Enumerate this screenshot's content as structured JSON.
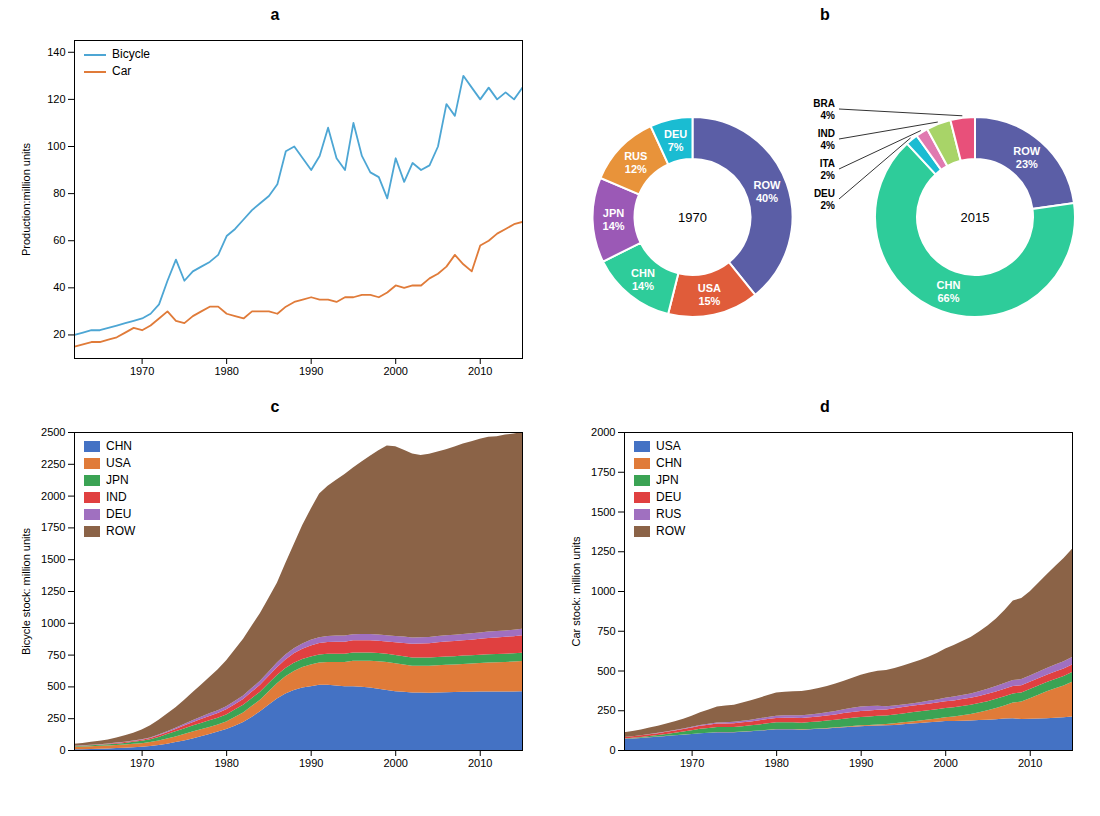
{
  "chart_data": [
    {
      "type": "line",
      "title": "a",
      "ylabel": "Production:million units",
      "x": [
        1962,
        1963,
        1964,
        1965,
        1966,
        1967,
        1968,
        1969,
        1970,
        1971,
        1972,
        1973,
        1974,
        1975,
        1976,
        1977,
        1978,
        1979,
        1980,
        1981,
        1982,
        1983,
        1984,
        1985,
        1986,
        1987,
        1988,
        1989,
        1990,
        1991,
        1992,
        1993,
        1994,
        1995,
        1996,
        1997,
        1998,
        1999,
        2000,
        2001,
        2002,
        2003,
        2004,
        2005,
        2006,
        2007,
        2008,
        2009,
        2010,
        2011,
        2012,
        2013,
        2014,
        2015
      ],
      "series": [
        {
          "name": "Bicycle",
          "color": "#4da6d4",
          "values": [
            20,
            21,
            22,
            22,
            23,
            24,
            25,
            26,
            27,
            29,
            33,
            43,
            52,
            43,
            47,
            49,
            51,
            54,
            62,
            65,
            69,
            73,
            76,
            79,
            84,
            98,
            100,
            95,
            90,
            96,
            108,
            95,
            90,
            110,
            96,
            89,
            87,
            78,
            95,
            85,
            93,
            90,
            92,
            100,
            118,
            113,
            130,
            125,
            120,
            125,
            120,
            123,
            120,
            125
          ]
        },
        {
          "name": "Car",
          "color": "#e07b39",
          "values": [
            15,
            16,
            17,
            17,
            18,
            19,
            21,
            23,
            22,
            24,
            27,
            30,
            26,
            25,
            28,
            30,
            32,
            32,
            29,
            28,
            27,
            30,
            30,
            30,
            29,
            32,
            34,
            35,
            36,
            35,
            35,
            34,
            36,
            36,
            37,
            37,
            36,
            38,
            41,
            40,
            41,
            41,
            44,
            46,
            49,
            54,
            50,
            47,
            58,
            60,
            63,
            65,
            67,
            68
          ]
        }
      ],
      "xlim": [
        1962,
        2015
      ],
      "xticks": [
        1970,
        1980,
        1990,
        2000,
        2010
      ],
      "ylim": [
        10,
        145
      ],
      "yticks": [
        20,
        40,
        60,
        80,
        100,
        120,
        140
      ],
      "legend": "upper left"
    },
    {
      "type": "pie",
      "title": "b",
      "annotations": [
        "1970"
      ],
      "categories": [
        "ROW",
        "USA",
        "CHN",
        "JPN",
        "RUS",
        "DEU"
      ],
      "values": [
        40,
        15,
        14,
        14,
        12,
        7
      ],
      "value_labels": [
        "40%",
        "15%",
        "14%",
        "14%",
        "12%",
        "7%"
      ],
      "colors": [
        "#5b5ea6",
        "#e05c3a",
        "#2ecc9a",
        "#9b59b6",
        "#e8933a",
        "#1abcd2"
      ]
    },
    {
      "type": "pie",
      "annotations": [
        "2015"
      ],
      "categories": [
        "ROW",
        "CHN",
        "DEU",
        "ITA",
        "IND",
        "BRA"
      ],
      "values": [
        23,
        66,
        2,
        2,
        4,
        4
      ],
      "value_labels": [
        "23%",
        "66%",
        "2%",
        "2%",
        "4%",
        "4%"
      ],
      "colors": [
        "#5b5ea6",
        "#2ecc9a",
        "#1abcd2",
        "#e07ab0",
        "#a8d468",
        "#e8507a"
      ]
    },
    {
      "type": "area",
      "stacked": true,
      "title": "c",
      "ylabel": "Bicycle stock: million units",
      "x": [
        1962,
        1963,
        1964,
        1965,
        1966,
        1967,
        1968,
        1969,
        1970,
        1971,
        1972,
        1973,
        1974,
        1975,
        1976,
        1977,
        1978,
        1979,
        1980,
        1981,
        1982,
        1983,
        1984,
        1985,
        1986,
        1987,
        1988,
        1989,
        1990,
        1991,
        1992,
        1993,
        1994,
        1995,
        1996,
        1997,
        1998,
        1999,
        2000,
        2001,
        2002,
        2003,
        2004,
        2005,
        2006,
        2007,
        2008,
        2009,
        2010,
        2011,
        2012,
        2013,
        2014,
        2015
      ],
      "series": [
        {
          "name": "CHN",
          "color": "#4472c4",
          "values": [
            5,
            6,
            8,
            10,
            12,
            15,
            18,
            22,
            26,
            32,
            40,
            50,
            62,
            75,
            90,
            108,
            126,
            145,
            165,
            190,
            220,
            260,
            305,
            355,
            405,
            445,
            472,
            492,
            502,
            512,
            512,
            507,
            502,
            502,
            497,
            492,
            482,
            472,
            462,
            457,
            452,
            452,
            450,
            452,
            454,
            455,
            457,
            458,
            459,
            460,
            460,
            460,
            460,
            462
          ]
        },
        {
          "name": "USA",
          "color": "#e07b39",
          "values": [
            20,
            21,
            22,
            23,
            24,
            25,
            26,
            27,
            28,
            30,
            35,
            40,
            45,
            50,
            55,
            55,
            55,
            55,
            60,
            70,
            75,
            85,
            90,
            105,
            120,
            135,
            150,
            160,
            170,
            175,
            180,
            185,
            190,
            200,
            205,
            210,
            215,
            220,
            220,
            215,
            210,
            210,
            212,
            215,
            217,
            218,
            220,
            222,
            225,
            228,
            230,
            232,
            235,
            238
          ]
        },
        {
          "name": "JPN",
          "color": "#3ba354",
          "values": [
            5,
            6,
            7,
            8,
            9,
            10,
            12,
            15,
            18,
            22,
            28,
            35,
            40,
            45,
            48,
            50,
            52,
            53,
            55,
            58,
            60,
            62,
            63,
            64,
            64,
            64,
            64,
            64,
            64,
            64,
            64,
            64,
            64,
            64,
            64,
            64,
            65,
            65,
            65,
            65,
            65,
            65,
            65,
            65,
            65,
            65,
            65,
            65,
            65,
            65,
            65,
            65,
            65,
            65
          ]
        },
        {
          "name": "IND",
          "color": "#e04040",
          "values": [
            2,
            2,
            3,
            3,
            4,
            5,
            6,
            7,
            8,
            10,
            12,
            15,
            18,
            22,
            26,
            30,
            35,
            38,
            40,
            42,
            46,
            50,
            54,
            58,
            62,
            68,
            74,
            80,
            86,
            90,
            94,
            96,
            96,
            96,
            96,
            96,
            96,
            96,
            100,
            105,
            108,
            110,
            112,
            115,
            117,
            118,
            120,
            122,
            125,
            128,
            130,
            133,
            135,
            138
          ]
        },
        {
          "name": "DEU",
          "color": "#a070c0",
          "values": [
            2,
            2,
            2,
            2,
            2,
            3,
            3,
            3,
            4,
            5,
            6,
            8,
            10,
            12,
            15,
            18,
            20,
            22,
            24,
            26,
            28,
            30,
            32,
            34,
            36,
            38,
            40,
            42,
            44,
            46,
            47,
            48,
            48,
            48,
            49,
            50,
            50,
            50,
            50,
            50,
            50,
            50,
            50,
            50,
            50,
            50,
            50,
            50,
            50,
            50,
            50,
            50,
            50,
            50
          ]
        },
        {
          "name": "ROW",
          "color": "#8b6347",
          "values": [
            15,
            18,
            22,
            26,
            32,
            40,
            50,
            62,
            78,
            96,
            116,
            138,
            162,
            190,
            220,
            252,
            286,
            322,
            362,
            404,
            446,
            490,
            534,
            578,
            628,
            720,
            820,
            930,
            1030,
            1130,
            1180,
            1225,
            1270,
            1310,
            1358,
            1402,
            1448,
            1490,
            1490,
            1468,
            1446,
            1432,
            1440,
            1450,
            1462,
            1480,
            1498,
            1510,
            1522,
            1532,
            1532,
            1540,
            1543,
            1547
          ]
        }
      ],
      "xlim": [
        1962,
        2015
      ],
      "xticks": [
        1970,
        1980,
        1990,
        2000,
        2010
      ],
      "ylim": [
        0,
        2500
      ],
      "yticks": [
        0,
        250,
        500,
        750,
        1000,
        1250,
        1500,
        1750,
        2000,
        2250,
        2500
      ],
      "legend": "upper left"
    },
    {
      "type": "area",
      "stacked": true,
      "title": "d",
      "ylabel": "Car stock: million units",
      "x": [
        1962,
        1963,
        1964,
        1965,
        1966,
        1967,
        1968,
        1969,
        1970,
        1971,
        1972,
        1973,
        1974,
        1975,
        1976,
        1977,
        1978,
        1979,
        1980,
        1981,
        1982,
        1983,
        1984,
        1985,
        1986,
        1987,
        1988,
        1989,
        1990,
        1991,
        1992,
        1993,
        1994,
        1995,
        1996,
        1997,
        1998,
        1999,
        2000,
        2001,
        2002,
        2003,
        2004,
        2005,
        2006,
        2007,
        2008,
        2009,
        2010,
        2011,
        2012,
        2013,
        2014,
        2015
      ],
      "series": [
        {
          "name": "USA",
          "color": "#4472c4",
          "values": [
            70,
            73,
            76,
            80,
            84,
            88,
            92,
            96,
            100,
            105,
            108,
            112,
            112,
            112,
            115,
            118,
            122,
            126,
            130,
            130,
            130,
            128,
            130,
            133,
            136,
            140,
            143,
            146,
            150,
            152,
            154,
            155,
            158,
            162,
            166,
            170,
            174,
            178,
            182,
            183,
            184,
            185,
            188,
            190,
            194,
            198,
            200,
            195,
            196,
            198,
            200,
            203,
            206,
            210
          ]
        },
        {
          "name": "CHN",
          "color": "#e07b39",
          "values": [
            1,
            1,
            1,
            1,
            1,
            1,
            1,
            1,
            1,
            1,
            1,
            1,
            1,
            1,
            1,
            1,
            1,
            2,
            2,
            2,
            2,
            2,
            2,
            2,
            3,
            3,
            4,
            5,
            5,
            6,
            7,
            8,
            10,
            12,
            14,
            16,
            18,
            20,
            24,
            28,
            35,
            42,
            50,
            60,
            70,
            82,
            98,
            110,
            130,
            150,
            170,
            185,
            200,
            220
          ]
        },
        {
          "name": "JPN",
          "color": "#3ba354",
          "values": [
            2,
            3,
            5,
            7,
            9,
            12,
            15,
            19,
            23,
            27,
            30,
            32,
            32,
            32,
            34,
            36,
            38,
            40,
            42,
            42,
            42,
            42,
            44,
            45,
            46,
            48,
            50,
            52,
            53,
            53,
            54,
            54,
            55,
            56,
            57,
            58,
            58,
            58,
            58,
            58,
            57,
            57,
            57,
            57,
            58,
            58,
            58,
            57,
            58,
            58,
            58,
            58,
            59,
            60
          ]
        },
        {
          "name": "DEU",
          "color": "#e04040",
          "values": [
            8,
            9,
            10,
            11,
            12,
            14,
            15,
            16,
            18,
            19,
            20,
            21,
            22,
            23,
            24,
            25,
            26,
            27,
            28,
            29,
            29,
            30,
            30,
            31,
            32,
            33,
            35,
            36,
            37,
            38,
            38,
            38,
            39,
            40,
            41,
            41,
            41,
            42,
            42,
            43,
            44,
            44,
            45,
            46,
            46,
            47,
            46,
            46,
            46,
            46,
            46,
            47,
            47,
            47
          ]
        },
        {
          "name": "RUS",
          "color": "#a070c0",
          "values": [
            1,
            1,
            1,
            2,
            2,
            2,
            3,
            3,
            4,
            5,
            6,
            7,
            8,
            9,
            10,
            11,
            12,
            13,
            14,
            15,
            16,
            17,
            18,
            19,
            20,
            22,
            24,
            26,
            28,
            28,
            25,
            20,
            18,
            16,
            15,
            16,
            18,
            20,
            22,
            24,
            26,
            28,
            30,
            32,
            34,
            36,
            38,
            38,
            38,
            40,
            42,
            44,
            46,
            48
          ]
        },
        {
          "name": "ROW",
          "color": "#8b6347",
          "values": [
            30,
            33,
            36,
            40,
            44,
            49,
            55,
            62,
            70,
            80,
            90,
            100,
            105,
            108,
            115,
            122,
            130,
            138,
            145,
            148,
            150,
            152,
            155,
            160,
            165,
            172,
            180,
            190,
            200,
            210,
            220,
            228,
            235,
            245,
            255,
            265,
            278,
            292,
            310,
            325,
            340,
            355,
            375,
            398,
            425,
            460,
            500,
            510,
            530,
            560,
            590,
            620,
            650,
            680
          ]
        }
      ],
      "xlim": [
        1962,
        2015
      ],
      "xticks": [
        1970,
        1980,
        1990,
        2000,
        2010
      ],
      "ylim": [
        0,
        2000
      ],
      "yticks": [
        0,
        250,
        500,
        750,
        1000,
        1250,
        1500,
        1750,
        2000
      ],
      "legend": "upper left"
    }
  ]
}
